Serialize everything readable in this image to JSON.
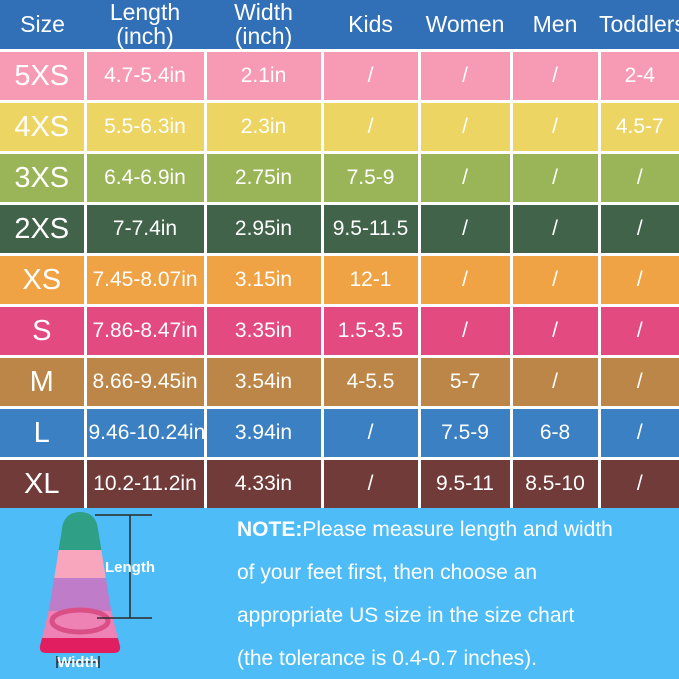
{
  "table": {
    "header_bg": "#3170b7",
    "header_text_color": "#ffffff",
    "columns": [
      {
        "id": "size",
        "label": "Size",
        "sub": ""
      },
      {
        "id": "length",
        "label": "Length",
        "sub": "(inch)"
      },
      {
        "id": "width",
        "label": "Width",
        "sub": "(inch)"
      },
      {
        "id": "kids",
        "label": "Kids",
        "sub": ""
      },
      {
        "id": "women",
        "label": "Women",
        "sub": ""
      },
      {
        "id": "men",
        "label": "Men",
        "sub": ""
      },
      {
        "id": "toddlers",
        "label": "Toddlers",
        "sub": ""
      }
    ],
    "rows": [
      {
        "size": "5XS",
        "length": "4.7-5.4in",
        "width": "2.1in",
        "kids": "/",
        "women": "/",
        "men": "/",
        "toddlers": "2-4",
        "bg": "#f79ab4"
      },
      {
        "size": "4XS",
        "length": "5.5-6.3in",
        "width": "2.3in",
        "kids": "/",
        "women": "/",
        "men": "/",
        "toddlers": "4.5-7",
        "bg": "#edd563"
      },
      {
        "size": "3XS",
        "length": "6.4-6.9in",
        "width": "2.75in",
        "kids": "7.5-9",
        "women": "/",
        "men": "/",
        "toddlers": "/",
        "bg": "#9ab557"
      },
      {
        "size": "2XS",
        "length": "7-7.4in",
        "width": "2.95in",
        "kids": "9.5-11.5",
        "women": "/",
        "men": "/",
        "toddlers": "/",
        "bg": "#406349"
      },
      {
        "size": "XS",
        "length": "7.45-8.07in",
        "width": "3.15in",
        "kids": "12-1",
        "women": "/",
        "men": "/",
        "toddlers": "/",
        "bg": "#efa344"
      },
      {
        "size": "S",
        "length": "7.86-8.47in",
        "width": "3.35in",
        "kids": "1.5-3.5",
        "women": "/",
        "men": "/",
        "toddlers": "/",
        "bg": "#e24a80"
      },
      {
        "size": "M",
        "length": "8.66-9.45in",
        "width": "3.54in",
        "kids": "4-5.5",
        "women": "5-7",
        "men": "/",
        "toddlers": "/",
        "bg": "#bb8647"
      },
      {
        "size": "L",
        "length": "9.46-10.24in",
        "width": "3.94in",
        "kids": "/",
        "women": "7.5-9",
        "men": "6-8",
        "toddlers": "/",
        "bg": "#3b80c2"
      },
      {
        "size": "XL",
        "length": "10.2-11.2in",
        "width": "4.33in",
        "kids": "/",
        "women": "9.5-11",
        "men": "8.5-10",
        "toddlers": "/",
        "bg": "#703b38"
      }
    ]
  },
  "note": {
    "bold_prefix": "NOTE:",
    "lines": [
      "Please measure length and width",
      "of your feet first, then choose an",
      "appropriate US size in the size chart",
      "(the tolerance is 0.4-0.7 inches)."
    ],
    "background": "#4dbcf7",
    "text_color": "#ffffff"
  },
  "fin_diagram": {
    "length_label": "Length",
    "width_label": "Width",
    "band_colors": [
      "#2f9f85",
      "#f7a6bd",
      "#bf7cc8",
      "#ee82b4",
      "#e01e60"
    ]
  },
  "chart_data": {
    "type": "table",
    "columns": [
      "Size",
      "Length (inch)",
      "Width (inch)",
      "Kids",
      "Women",
      "Men",
      "Toddlers"
    ],
    "rows": [
      [
        "5XS",
        "4.7-5.4in",
        "2.1in",
        "/",
        "/",
        "/",
        "2-4"
      ],
      [
        "4XS",
        "5.5-6.3in",
        "2.3in",
        "/",
        "/",
        "/",
        "4.5-7"
      ],
      [
        "3XS",
        "6.4-6.9in",
        "2.75in",
        "7.5-9",
        "/",
        "/",
        "/"
      ],
      [
        "2XS",
        "7-7.4in",
        "2.95in",
        "9.5-11.5",
        "/",
        "/",
        "/"
      ],
      [
        "XS",
        "7.45-8.07in",
        "3.15in",
        "12-1",
        "/",
        "/",
        "/"
      ],
      [
        "S",
        "7.86-8.47in",
        "3.35in",
        "1.5-3.5",
        "/",
        "/",
        "/"
      ],
      [
        "M",
        "8.66-9.45in",
        "3.54in",
        "4-5.5",
        "5-7",
        "/",
        "/"
      ],
      [
        "L",
        "9.46-10.24in",
        "3.94in",
        "/",
        "7.5-9",
        "6-8",
        "/"
      ],
      [
        "XL",
        "10.2-11.2in",
        "4.33in",
        "/",
        "9.5-11",
        "8.5-10",
        "/"
      ]
    ],
    "row_colors": [
      "#f79ab4",
      "#edd563",
      "#9ab557",
      "#406349",
      "#efa344",
      "#e24a80",
      "#bb8647",
      "#3b80c2",
      "#703b38"
    ],
    "note": "NOTE:Please measure length and width of your feet first, then choose an appropriate US size in the size chart (the tolerance is 0.4-0.7 inches)."
  }
}
